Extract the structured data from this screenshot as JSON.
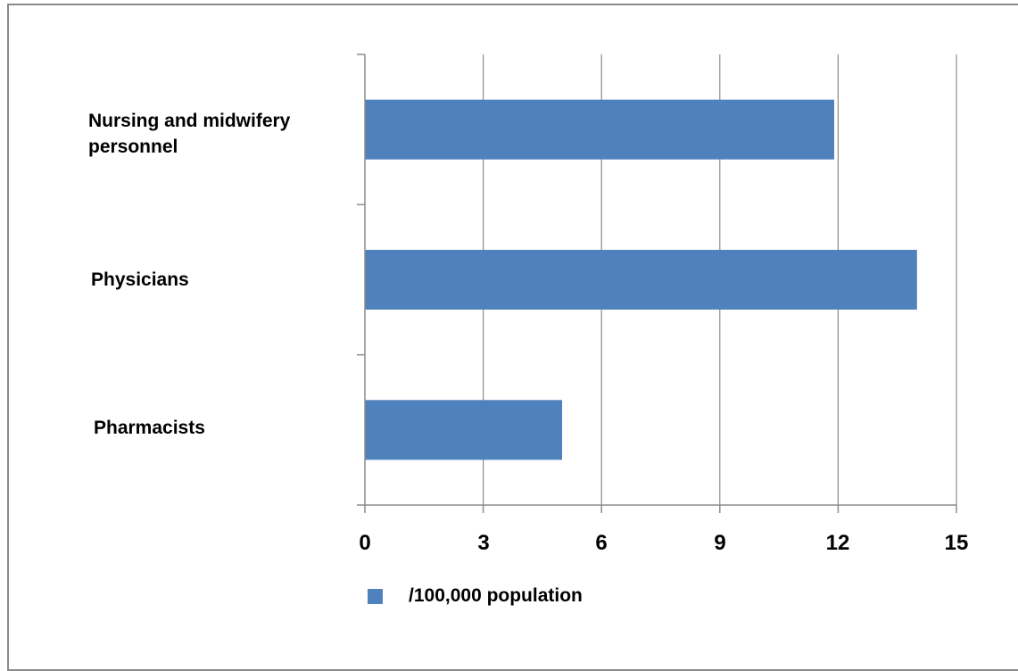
{
  "chart_data": {
    "type": "bar",
    "orientation": "horizontal",
    "categories": [
      "Nursing and midwifery personnel",
      "Physicians",
      "Pharmacists"
    ],
    "category_label_lines": [
      [
        "Nursing and midwifery",
        "personnel"
      ],
      [
        "Physicians"
      ],
      [
        "Pharmacists"
      ]
    ],
    "series": [
      {
        "name": "/100,000 population",
        "values": [
          11.9,
          14,
          5
        ],
        "color": "#4f81bd"
      }
    ],
    "xlim": [
      0,
      15
    ],
    "xticks": [
      0,
      3,
      6,
      9,
      12,
      15
    ],
    "xtick_labels": [
      "0",
      "3",
      "6",
      "9",
      "12",
      "15"
    ],
    "grid": true,
    "legend_position": "bottom-left",
    "colors": {
      "bar": "#4f81bd",
      "grid": "#8c8c8c",
      "axis": "#8c8c8c",
      "frame": "#8a8a8a"
    }
  }
}
